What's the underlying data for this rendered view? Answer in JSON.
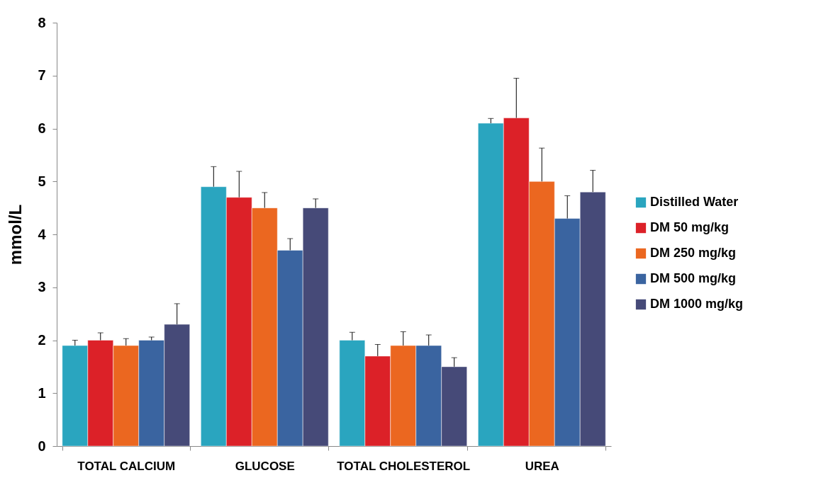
{
  "chart_data": {
    "type": "bar",
    "ylabel": "mmol/L",
    "categories": [
      "TOTAL CALCIUM",
      "GLUCOSE",
      "TOTAL CHOLESTEROL",
      "UREA"
    ],
    "ylim": [
      0,
      8
    ],
    "yticks": [
      0,
      1,
      2,
      3,
      4,
      5,
      6,
      7,
      8
    ],
    "grid": false,
    "legend": "right",
    "series": [
      {
        "name": "Distilled Water",
        "color": "#2aa5bf",
        "values": [
          1.9,
          4.9,
          2.0,
          6.1
        ],
        "errors": [
          [
            1.9,
            2.0
          ],
          [
            4.9,
            5.28
          ],
          [
            2.0,
            2.15
          ],
          [
            6.1,
            6.19
          ]
        ]
      },
      {
        "name": "DM 50 mg/kg",
        "color": "#dc2128",
        "values": [
          2.0,
          4.7,
          1.7,
          6.2
        ],
        "errors": [
          [
            2.0,
            2.14
          ],
          [
            4.7,
            5.19
          ],
          [
            1.7,
            1.92
          ],
          [
            6.2,
            6.95
          ]
        ]
      },
      {
        "name": "DM 250 mg/kg",
        "color": "#eb6720",
        "values": [
          1.9,
          4.5,
          1.9,
          5.0
        ],
        "errors": [
          [
            1.9,
            2.03
          ],
          [
            4.5,
            4.79
          ],
          [
            1.9,
            2.16
          ],
          [
            5.0,
            5.63
          ]
        ]
      },
      {
        "name": "DM 500 mg/kg",
        "color": "#3a64a0",
        "values": [
          2.0,
          3.7,
          1.9,
          4.3
        ],
        "errors": [
          [
            2.0,
            2.06
          ],
          [
            3.7,
            3.92
          ],
          [
            1.9,
            2.1
          ],
          [
            4.3,
            4.73
          ]
        ]
      },
      {
        "name": "DM 1000 mg/kg",
        "color": "#464a78",
        "values": [
          2.3,
          4.5,
          1.5,
          4.8
        ],
        "errors": [
          [
            2.3,
            2.69
          ],
          [
            4.5,
            4.67
          ],
          [
            1.5,
            1.67
          ],
          [
            4.8,
            5.21
          ]
        ]
      }
    ]
  }
}
